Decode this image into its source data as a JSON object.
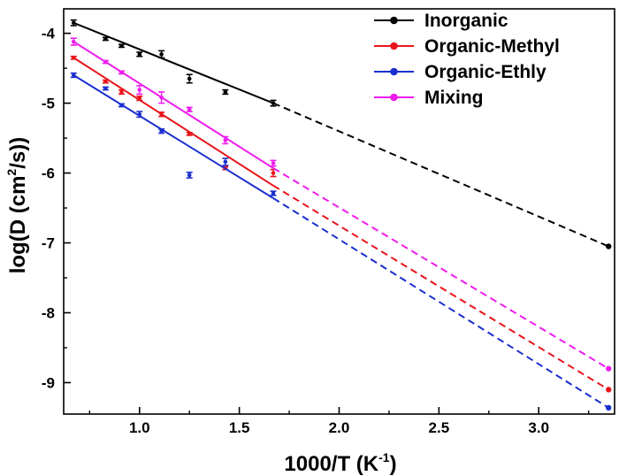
{
  "chart_data": {
    "type": "line",
    "title": "",
    "xlabel": {
      "main": "1000/T (K",
      "sup": "-1",
      "close": ")"
    },
    "ylabel": {
      "main": "log(D (cm",
      "sup": "2",
      "close": "/s))"
    },
    "xlim": [
      0.62,
      3.38
    ],
    "ylim": [
      -9.45,
      -3.65
    ],
    "xticks": [
      1.0,
      1.5,
      2.0,
      2.5,
      3.0
    ],
    "xtick_labels": [
      "1.0",
      "1.5",
      "2.0",
      "2.5",
      "3.0"
    ],
    "yticks": [
      -9,
      -8,
      -7,
      -6,
      -5,
      -4
    ],
    "ytick_labels": [
      "-9",
      "-8",
      "-7",
      "-6",
      "-5",
      "-4"
    ],
    "grid": false,
    "legend_position": "top-right",
    "series": [
      {
        "name": "Inorganic",
        "color": "#000000",
        "x": [
          0.67,
          0.83,
          0.91,
          1.0,
          1.11,
          1.25,
          1.43,
          1.67
        ],
        "y": [
          -3.85,
          -4.08,
          -4.18,
          -4.3,
          -4.3,
          -4.65,
          -4.84,
          -5.0
        ],
        "err": [
          0.04,
          0.02,
          0.02,
          0.03,
          0.05,
          0.06,
          0.03,
          0.04
        ],
        "fit": {
          "x": [
            0.67,
            1.67
          ],
          "y": [
            -3.85,
            -5.0
          ]
        },
        "extrapolation": {
          "x": [
            1.67,
            3.35
          ],
          "y": [
            -5.0,
            -7.05
          ]
        },
        "extrapolated_point": {
          "x": 3.35,
          "y": -7.05
        }
      },
      {
        "name": "Organic-Methyl",
        "color": "#e8151b",
        "x": [
          0.67,
          0.83,
          0.91,
          1.0,
          1.11,
          1.25,
          1.43,
          1.67
        ],
        "y": [
          -4.35,
          -4.69,
          -4.84,
          -4.93,
          -5.16,
          -5.44,
          -5.93,
          -6.0
        ],
        "err": [
          0.02,
          0.02,
          0.03,
          0.03,
          0.03,
          0.02,
          0.02,
          0.05
        ],
        "fit": {
          "x": [
            0.67,
            1.67
          ],
          "y": [
            -4.35,
            -6.18
          ]
        },
        "extrapolation": {
          "x": [
            1.67,
            3.35
          ],
          "y": [
            -6.18,
            -9.1
          ]
        },
        "extrapolated_point": {
          "x": 3.35,
          "y": -9.1
        }
      },
      {
        "name": "Organic-Ethly",
        "color": "#1a2fcf",
        "x": [
          0.67,
          0.83,
          0.91,
          1.0,
          1.11,
          1.25,
          1.43,
          1.67
        ],
        "y": [
          -4.6,
          -4.79,
          -5.03,
          -5.16,
          -5.4,
          -6.03,
          -5.84,
          -6.29
        ],
        "err": [
          0.03,
          0.02,
          0.02,
          0.04,
          0.03,
          0.04,
          0.05,
          0.03
        ],
        "fit": {
          "x": [
            0.67,
            1.67
          ],
          "y": [
            -4.6,
            -6.36
          ]
        },
        "extrapolation": {
          "x": [
            1.67,
            3.35
          ],
          "y": [
            -6.36,
            -9.36
          ]
        },
        "extrapolated_point": {
          "x": 3.35,
          "y": -9.36
        }
      },
      {
        "name": "Mixing",
        "color": "#ee1cee",
        "x": [
          0.67,
          0.83,
          0.91,
          1.0,
          1.11,
          1.25,
          1.43,
          1.67
        ],
        "y": [
          -4.12,
          -4.41,
          -4.56,
          -4.81,
          -4.92,
          -5.09,
          -5.53,
          -5.86
        ],
        "err": [
          0.05,
          0.02,
          0.02,
          0.06,
          0.08,
          0.03,
          0.05,
          0.04
        ],
        "fit": {
          "x": [
            0.67,
            1.67
          ],
          "y": [
            -4.12,
            -5.93
          ]
        },
        "extrapolation": {
          "x": [
            1.67,
            3.35
          ],
          "y": [
            -5.93,
            -8.8
          ]
        },
        "extrapolated_point": {
          "x": 3.35,
          "y": -8.8
        }
      }
    ]
  }
}
